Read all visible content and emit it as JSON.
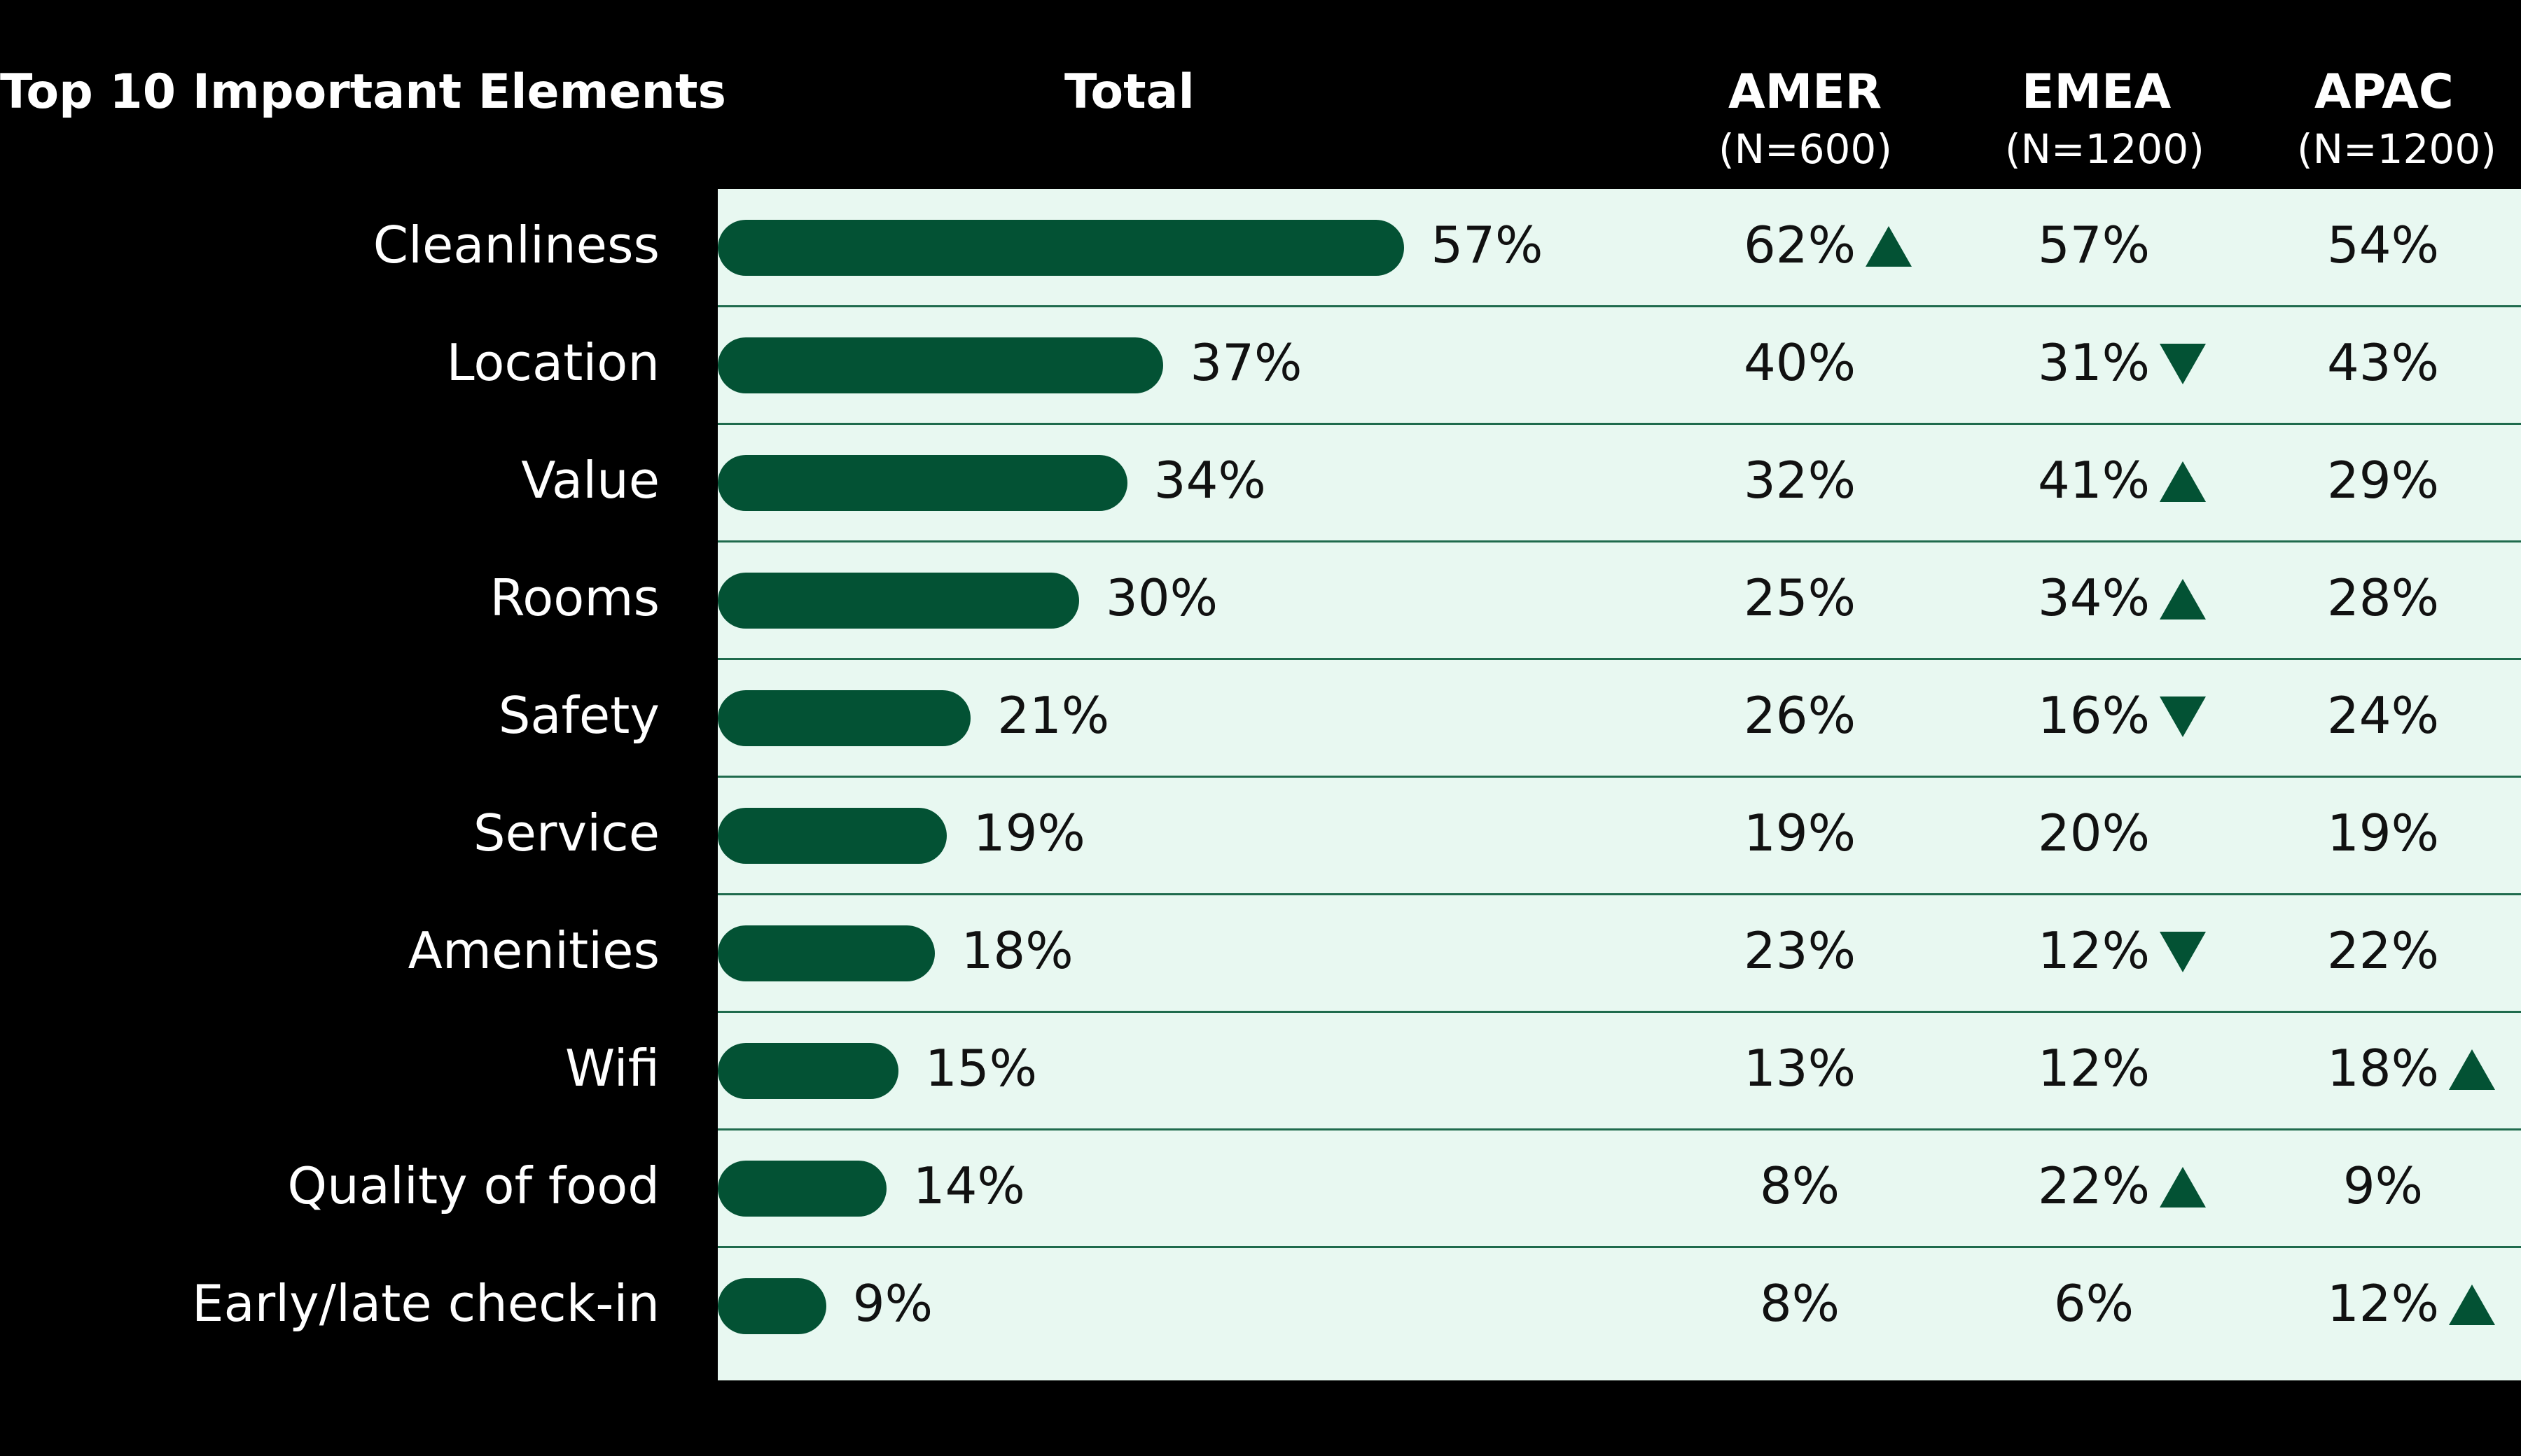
{
  "header": {
    "left_title": "Top 10 Important Elements",
    "total": "Total",
    "regions": [
      {
        "label": "AMER",
        "subtitle": "(N=600)"
      },
      {
        "label": "EMEA",
        "subtitle": "(N=1200)"
      },
      {
        "label": "APAC",
        "subtitle": "(N=1200)"
      }
    ]
  },
  "colors": {
    "background": "#000000",
    "panel": "#e8f8f1",
    "bar": "#035234",
    "marker": "#035234",
    "separator": "#1f6b4d",
    "header_text": "#ffffff",
    "body_text": "#111111"
  },
  "markers": {
    "up_icon": "triangle-up",
    "down_icon": "triangle-down"
  },
  "chart_data": {
    "type": "bar",
    "orientation": "horizontal",
    "title": "Top 10 Important Elements",
    "categories": [
      "Cleanliness",
      "Location",
      "Value",
      "Rooms",
      "Safety",
      "Service",
      "Amenities",
      "Wifi",
      "Quality of food",
      "Early/late check-in"
    ],
    "values": [
      57,
      37,
      34,
      30,
      21,
      19,
      18,
      15,
      14,
      9
    ],
    "value_labels": [
      "57%",
      "37%",
      "34%",
      "30%",
      "21%",
      "19%",
      "18%",
      "15%",
      "14%",
      "9%"
    ],
    "xlim": [
      0,
      100
    ],
    "grid": false,
    "legend": "none",
    "regions": [
      {
        "name": "AMER",
        "n": "(N=600)",
        "values": [
          62,
          40,
          32,
          25,
          26,
          19,
          23,
          13,
          8,
          8
        ],
        "value_labels": [
          "62%",
          "40%",
          "32%",
          "25%",
          "26%",
          "19%",
          "23%",
          "13%",
          "8%",
          "8%"
        ],
        "significance": [
          "up",
          "",
          "",
          "",
          "",
          "",
          "",
          "",
          "",
          ""
        ]
      },
      {
        "name": "EMEA",
        "n": "(N=1200)",
        "values": [
          57,
          31,
          41,
          34,
          16,
          20,
          12,
          12,
          22,
          6
        ],
        "value_labels": [
          "57%",
          "31%",
          "41%",
          "34%",
          "16%",
          "20%",
          "12%",
          "12%",
          "22%",
          "6%"
        ],
        "significance": [
          "",
          "down",
          "up",
          "up",
          "down",
          "",
          "down",
          "",
          "up",
          ""
        ]
      },
      {
        "name": "APAC",
        "n": "(N=1200)",
        "values": [
          54,
          43,
          29,
          28,
          24,
          19,
          22,
          18,
          9,
          12
        ],
        "value_labels": [
          "54%",
          "43%",
          "29%",
          "28%",
          "24%",
          "19%",
          "22%",
          "18%",
          "9%",
          "12%"
        ],
        "significance": [
          "",
          "",
          "",
          "",
          "",
          "",
          "",
          "up",
          "",
          "up"
        ]
      }
    ]
  }
}
